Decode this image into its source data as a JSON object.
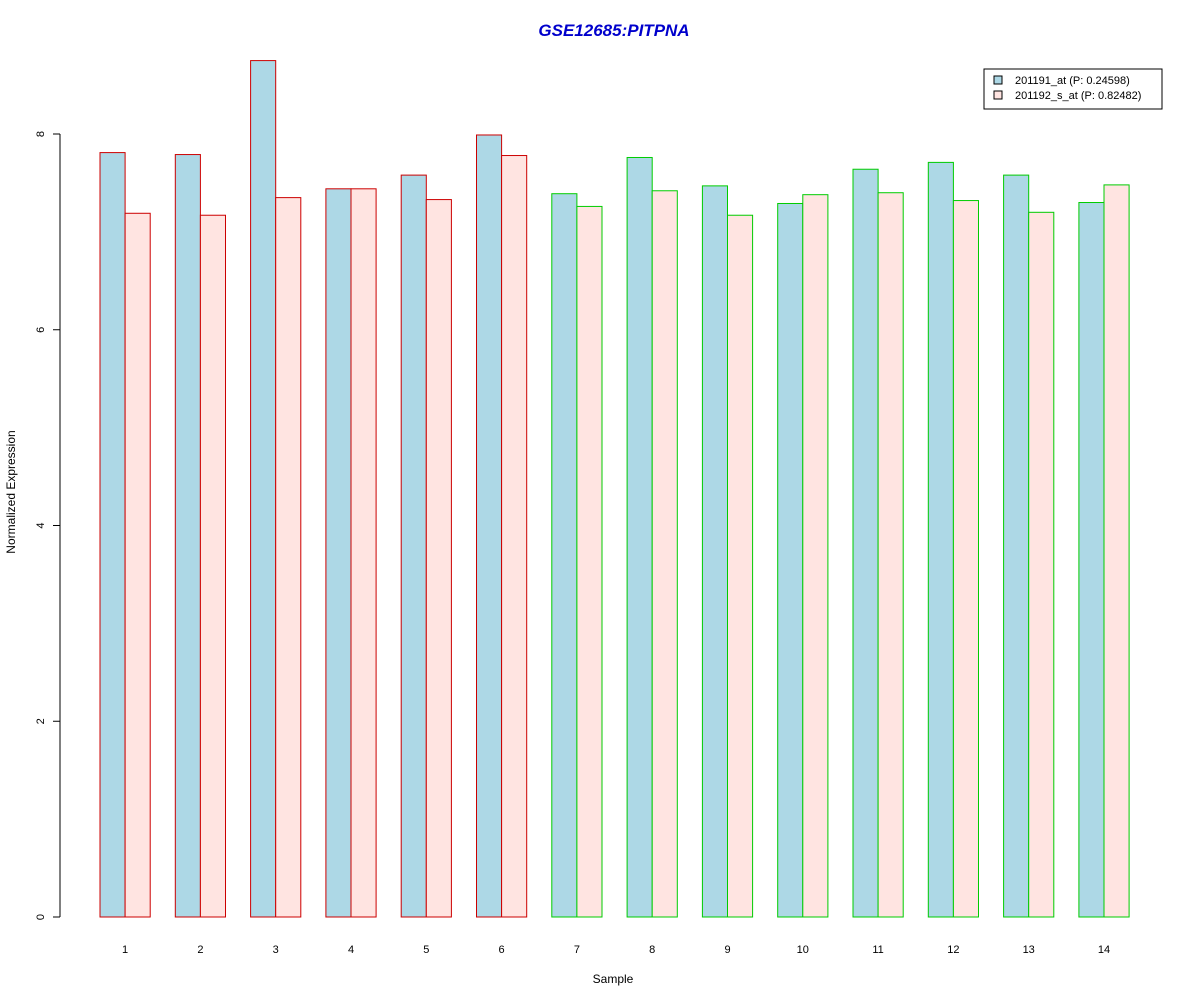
{
  "chart_data": {
    "type": "bar",
    "title": "GSE12685:PITPNA",
    "title_color": "#0000CC",
    "xlabel": "Sample",
    "ylabel": "Normalized Expression",
    "categories": [
      "1",
      "2",
      "3",
      "4",
      "5",
      "6",
      "7",
      "8",
      "9",
      "10",
      "11",
      "12",
      "13",
      "14"
    ],
    "ylim": [
      0,
      8.8
    ],
    "yticks": [
      "0",
      "2",
      "4",
      "6",
      "8"
    ],
    "grid": false,
    "legend_position": "top-right",
    "group_border_colors": [
      "#CC0000",
      "#CC0000",
      "#CC0000",
      "#CC0000",
      "#CC0000",
      "#CC0000",
      "#00CC00",
      "#00CC00",
      "#00CC00",
      "#00CC00",
      "#00CC00",
      "#00CC00",
      "#00CC00",
      "#00CC00"
    ],
    "series": [
      {
        "name": "201191_at (P: 0.24598)",
        "fill": "#ADD8E6",
        "values": [
          7.81,
          7.79,
          8.75,
          7.44,
          7.58,
          7.99,
          7.39,
          7.76,
          7.47,
          7.29,
          7.64,
          7.71,
          7.58,
          7.3
        ]
      },
      {
        "name": "201192_s_at (P: 0.82482)",
        "fill": "#FFE4E1",
        "values": [
          7.19,
          7.17,
          7.35,
          7.44,
          7.33,
          7.78,
          7.26,
          7.42,
          7.17,
          7.38,
          7.4,
          7.32,
          7.2,
          7.48
        ]
      }
    ]
  }
}
